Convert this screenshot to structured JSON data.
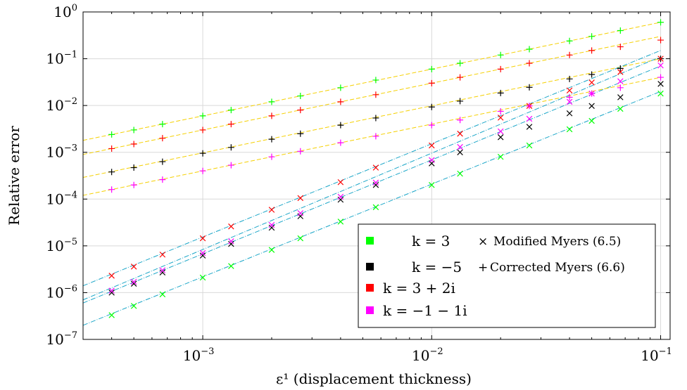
{
  "chart_data": {
    "type": "scatter",
    "xlabel": "ε¹ (displacement thickness)",
    "ylabel": "Relative error",
    "xscale": "log",
    "yscale": "log",
    "xlim": [
      0.0003,
      0.11
    ],
    "ylim": [
      1e-07,
      1
    ],
    "grid": true,
    "legend_position": "bottom-right",
    "x_ticks": [
      {
        "value": 0.001,
        "base": "10",
        "exp": "−3"
      },
      {
        "value": 0.01,
        "base": "10",
        "exp": "−2"
      },
      {
        "value": 0.1,
        "base": "10",
        "exp": "−1"
      }
    ],
    "y_ticks": [
      {
        "value": 1e-07,
        "base": "10",
        "exp": "−7"
      },
      {
        "value": 1e-06,
        "base": "10",
        "exp": "−6"
      },
      {
        "value": 1e-05,
        "base": "10",
        "exp": "−5"
      },
      {
        "value": 0.0001,
        "base": "10",
        "exp": "−4"
      },
      {
        "value": 0.001,
        "base": "10",
        "exp": "−3"
      },
      {
        "value": 0.01,
        "base": "10",
        "exp": "−2"
      },
      {
        "value": 0.1,
        "base": "10",
        "exp": "−1"
      },
      {
        "value": 1,
        "base": "10",
        "exp": "0"
      }
    ],
    "x": [
      0.0004,
      0.0005,
      0.000667,
      0.001,
      0.00133,
      0.002,
      0.00267,
      0.004,
      0.0057,
      0.01,
      0.0133,
      0.02,
      0.0267,
      0.04,
      0.05,
      0.0667,
      0.1
    ],
    "series": [
      {
        "name": "k = 3",
        "color": "#00ff00",
        "corrected": [
          0.0024,
          0.003,
          0.004,
          0.006,
          0.008,
          0.012,
          0.016,
          0.024,
          0.035,
          0.06,
          0.08,
          0.12,
          0.16,
          0.24,
          0.3,
          0.4,
          0.6
        ],
        "corrected_fit": {
          "x": [
            0.0003,
            0.1
          ],
          "y": [
            0.0018,
            0.6
          ]
        },
        "modified": [
          3.3e-07,
          5.2e-07,
          9.2e-07,
          2.1e-06,
          3.7e-06,
          8.2e-06,
          1.45e-05,
          3.3e-05,
          6.7e-05,
          0.0002,
          0.00035,
          0.0008,
          0.0014,
          0.0031,
          0.0047,
          0.0085,
          0.018
        ],
        "modified_fit": {
          "x": [
            0.0003,
            0.1
          ],
          "y": [
            2e-07,
            0.02
          ]
        }
      },
      {
        "name": "k = −5",
        "color": "#000000",
        "corrected": [
          0.00038,
          0.00047,
          0.00063,
          0.00095,
          0.00127,
          0.0019,
          0.0025,
          0.0038,
          0.0054,
          0.0093,
          0.0124,
          0.0185,
          0.0245,
          0.037,
          0.046,
          0.062,
          0.1
        ],
        "corrected_fit": {
          "x": [
            0.0003,
            0.1
          ],
          "y": [
            0.00029,
            0.1
          ]
        },
        "modified": [
          1e-06,
          1.55e-06,
          2.7e-06,
          6.2e-06,
          1.1e-05,
          2.45e-05,
          4.3e-05,
          9.7e-05,
          0.0002,
          0.00058,
          0.001,
          0.0021,
          0.0035,
          0.0068,
          0.0098,
          0.015,
          0.029
        ],
        "modified_fit": {
          "x": [
            0.0003,
            0.1
          ],
          "y": [
            6e-07,
            0.07
          ]
        }
      },
      {
        "name": "k = 3 + 2i",
        "color": "#ff0000",
        "corrected": [
          0.0012,
          0.0015,
          0.002,
          0.003,
          0.004,
          0.006,
          0.008,
          0.012,
          0.017,
          0.03,
          0.04,
          0.06,
          0.08,
          0.12,
          0.15,
          0.18,
          0.25
        ],
        "corrected_fit": {
          "x": [
            0.0003,
            0.1
          ],
          "y": [
            0.0009,
            0.3
          ]
        },
        "modified": [
          2.3e-06,
          3.6e-06,
          6.5e-06,
          1.45e-05,
          2.6e-05,
          5.9e-05,
          0.000105,
          0.00023,
          0.00047,
          0.0014,
          0.0025,
          0.0055,
          0.0098,
          0.021,
          0.031,
          0.052,
          0.1
        ],
        "modified_fit": {
          "x": [
            0.0003,
            0.1
          ],
          "y": [
            1.4e-06,
            0.15
          ]
        }
      },
      {
        "name": "k = −1 − 1i",
        "color": "#ff00ff",
        "corrected": [
          0.00016,
          0.0002,
          0.00026,
          0.0004,
          0.00053,
          0.0008,
          0.00105,
          0.0016,
          0.0022,
          0.0038,
          0.0049,
          0.0075,
          0.0098,
          0.015,
          0.018,
          0.024,
          0.04
        ],
        "corrected_fit": {
          "x": [
            0.0003,
            0.1
          ],
          "y": [
            0.00012,
            0.04
          ]
        },
        "modified": [
          1.1e-06,
          1.7e-06,
          3e-06,
          7e-06,
          1.25e-05,
          2.8e-05,
          5e-05,
          0.000112,
          0.000225,
          0.00068,
          0.0013,
          0.0028,
          0.0052,
          0.012,
          0.018,
          0.033,
          0.072
        ],
        "modified_fit": {
          "x": [
            0.0003,
            0.1
          ],
          "y": [
            7e-07,
            0.11
          ]
        }
      }
    ],
    "fit_colors": {
      "corrected": "#f5d000",
      "modified": "#1aa6c8"
    },
    "legend": {
      "entries": [
        "k = 3",
        "k = −5",
        "k = 3 + 2i",
        "k = −1 − 1i"
      ],
      "marker_modified": "×",
      "label_modified": "Modified Myers (6.5)",
      "marker_corrected": "+",
      "label_corrected": "Corrected Myers (6.6)"
    }
  }
}
